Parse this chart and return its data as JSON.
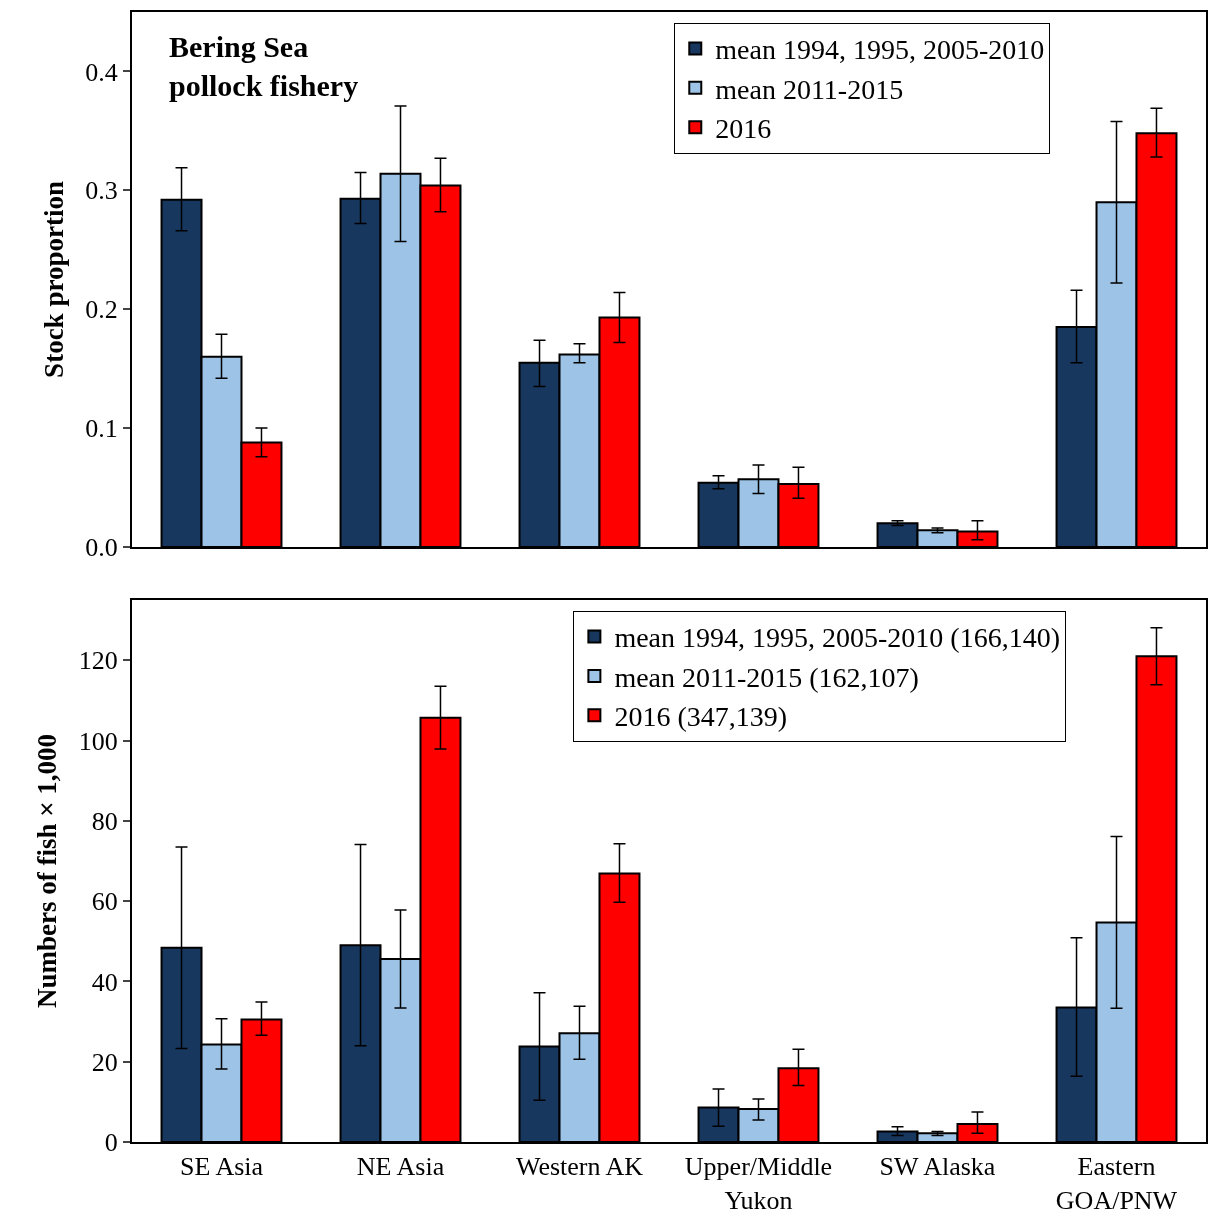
{
  "chart_data": [
    {
      "type": "bar",
      "title": "Bering Sea pollock fishery",
      "ylabel": "Stock proportion",
      "categories": [
        null,
        null,
        null,
        null,
        null,
        null
      ],
      "ylim": [
        0,
        0.45
      ],
      "yticks": [
        {
          "value": 0,
          "label": "0.0"
        },
        0.1,
        0.2,
        0.3,
        0.4
      ],
      "tick_labels": "y",
      "grid": false,
      "legend": "top right",
      "series": [
        {
          "name": "mean 1994, 1995, 2005-2010",
          "color": "#17375e",
          "values": [
            0.292,
            0.293,
            0.155,
            0.054,
            0.02,
            0.185
          ],
          "errors": [
            [
              0.266,
              0.319
            ],
            [
              0.272,
              0.315
            ],
            [
              0.135,
              0.174
            ],
            [
              0.049,
              0.06
            ],
            [
              0.018,
              0.022
            ],
            [
              0.155,
              0.216
            ]
          ]
        },
        {
          "name": "mean 2011-2015",
          "color": "#9dc3e6",
          "values": [
            0.16,
            0.314,
            0.162,
            0.057,
            0.014,
            0.29
          ],
          "errors": [
            [
              0.142,
              0.179
            ],
            [
              0.257,
              0.371
            ],
            [
              0.155,
              0.171
            ],
            [
              0.045,
              0.069
            ],
            [
              0.012,
              0.016
            ],
            [
              0.222,
              0.358
            ]
          ]
        },
        {
          "name": "2016",
          "color": "#ff0000",
          "values": [
            0.088,
            0.304,
            0.193,
            0.053,
            0.013,
            0.348
          ],
          "errors": [
            [
              0.076,
              0.1
            ],
            [
              0.282,
              0.327
            ],
            [
              0.172,
              0.214
            ],
            [
              0.041,
              0.067
            ],
            [
              0.006,
              0.022
            ],
            [
              0.328,
              0.369
            ]
          ]
        }
      ]
    },
    {
      "type": "bar",
      "ylabel": "Numbers of fish × 1,000",
      "categories": [
        "SE Asia",
        "NE Asia",
        "Western AK",
        "Upper/Middle Yukon",
        "SW Alaska",
        "Eastern GOA/PNW"
      ],
      "ylim": [
        0,
        135
      ],
      "yticks": [
        0,
        20,
        40,
        60,
        80,
        100,
        120
      ],
      "grid": false,
      "legend": "top right",
      "series": [
        {
          "name": "mean 1994, 1995, 2005-2010 (166,140)",
          "color": "#17375e",
          "values": [
            48.4,
            49.0,
            23.8,
            8.6,
            2.6,
            33.5
          ],
          "errors": [
            [
              23.3,
              73.5
            ],
            [
              24.0,
              74.1
            ],
            [
              10.4,
              37.2
            ],
            [
              3.9,
              13.2
            ],
            [
              1.6,
              3.8
            ],
            [
              16.4,
              50.9
            ]
          ]
        },
        {
          "name": "mean 2011-2015 (162,107)",
          "color": "#9dc3e6",
          "values": [
            24.3,
            45.6,
            27.1,
            8.2,
            2.2,
            54.7
          ],
          "errors": [
            [
              18.2,
              30.7
            ],
            [
              33.4,
              57.8
            ],
            [
              20.6,
              33.8
            ],
            [
              5.5,
              10.7
            ],
            [
              1.6,
              2.6
            ],
            [
              33.3,
              76.1
            ]
          ]
        },
        {
          "name": "2016 (347,139)",
          "color": "#ff0000",
          "values": [
            30.5,
            105.7,
            66.9,
            18.4,
            4.5,
            121.0
          ],
          "errors": [
            [
              26.6,
              34.9
            ],
            [
              97.9,
              113.5
            ],
            [
              59.7,
              74.3
            ],
            [
              14.1,
              23.1
            ],
            [
              2.2,
              7.5
            ],
            [
              113.9,
              128.1
            ]
          ]
        }
      ]
    }
  ]
}
